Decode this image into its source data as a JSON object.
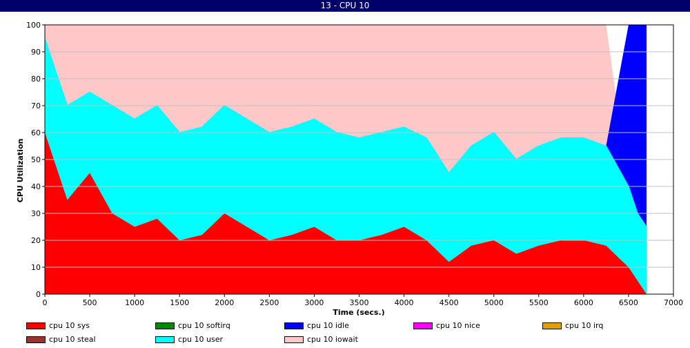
{
  "window_title": "13 - CPU 10",
  "chart_data": {
    "type": "area",
    "stacked": true,
    "xlabel": "Time (secs.)",
    "ylabel": "CPU Utilization",
    "xlim": [
      0,
      7000
    ],
    "ylim": [
      0,
      100
    ],
    "x_ticks": [
      0,
      500,
      1000,
      1500,
      2000,
      2500,
      3000,
      3500,
      4000,
      4500,
      5000,
      5500,
      6000,
      6500,
      7000
    ],
    "y_ticks": [
      0,
      10,
      20,
      30,
      40,
      50,
      60,
      70,
      80,
      90,
      100
    ],
    "grid": "horizontal",
    "legend_position": "bottom",
    "series": [
      {
        "name": "cpu 10 sys",
        "color": "#ff0000"
      },
      {
        "name": "cpu 10 softirq",
        "color": "#008800"
      },
      {
        "name": "cpu 10 idle",
        "color": "#0000ff"
      },
      {
        "name": "cpu 10 nice",
        "color": "#ff00ff"
      },
      {
        "name": "cpu 10 irq",
        "color": "#e0a000"
      },
      {
        "name": "cpu 10 steal",
        "color": "#a03030"
      },
      {
        "name": "cpu 10 user",
        "color": "#00ffff"
      },
      {
        "name": "cpu 10 iowait",
        "color": "#ffc8c8"
      }
    ],
    "approx_points": {
      "x": [
        0,
        250,
        500,
        750,
        1000,
        1250,
        1500,
        1750,
        2000,
        2250,
        2500,
        2750,
        3000,
        3250,
        3500,
        3750,
        4000,
        4250,
        4500,
        4750,
        5000,
        5250,
        5500,
        5750,
        6000,
        6250,
        6500,
        6600,
        6700
      ],
      "sys": [
        60,
        35,
        45,
        30,
        25,
        28,
        20,
        22,
        30,
        25,
        20,
        22,
        25,
        20,
        20,
        22,
        25,
        20,
        12,
        18,
        20,
        15,
        18,
        20,
        20,
        18,
        10,
        5,
        0
      ],
      "user_top": [
        95,
        70,
        75,
        70,
        65,
        70,
        60,
        62,
        70,
        65,
        60,
        62,
        65,
        60,
        58,
        60,
        62,
        58,
        45,
        55,
        60,
        50,
        55,
        58,
        58,
        55,
        40,
        30,
        25
      ],
      "idle_top": [
        100,
        100,
        100,
        100,
        100,
        100,
        100,
        100,
        100,
        100,
        100,
        100,
        100,
        100,
        100,
        100,
        100,
        100,
        100,
        100,
        100,
        100,
        100,
        100,
        100,
        100,
        100,
        100,
        100
      ]
    }
  }
}
